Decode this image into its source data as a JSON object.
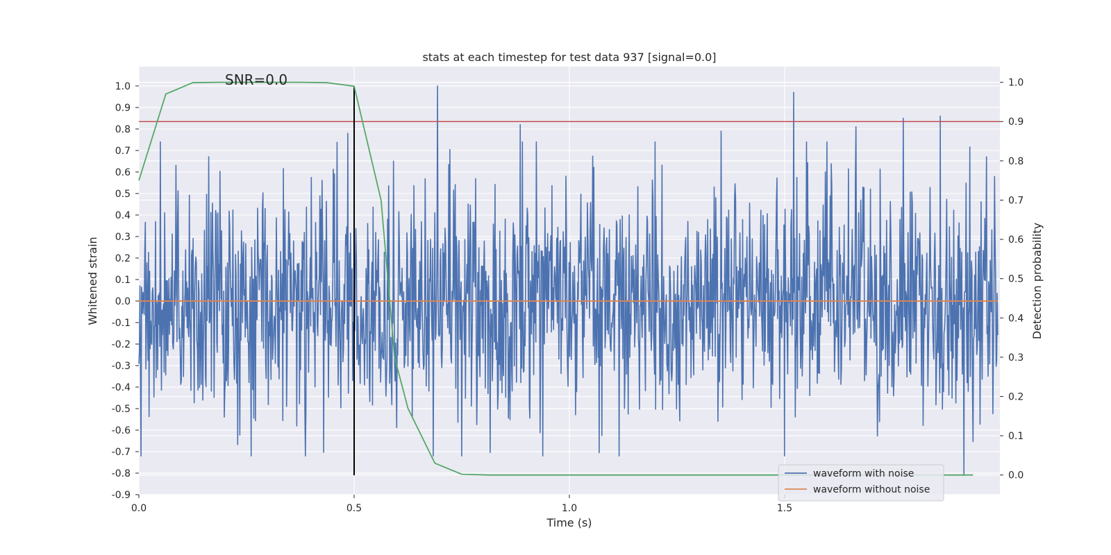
{
  "chart_data": {
    "type": "line",
    "title": "stats at each timestep for test data 937 [signal=0.0]",
    "xlabel": "Time (s)",
    "ylabel_left": "Whitened strain",
    "ylabel_right": "Detection probability",
    "xlim": [
      0.0,
      2.0
    ],
    "ylim_left": [
      -0.9,
      1.09
    ],
    "ylim_right": [
      -0.05,
      1.04
    ],
    "x_ticks": [
      "0.0",
      "0.5",
      "1.0",
      "1.5"
    ],
    "x_tick_values": [
      0.0,
      0.5,
      1.0,
      1.5
    ],
    "y_left_ticks": [
      "1.0",
      "0.9",
      "0.8",
      "0.7",
      "0.6",
      "0.5",
      "0.4",
      "0.3",
      "0.2",
      "0.1",
      "0.0",
      "-0.1",
      "-0.2",
      "-0.3",
      "-0.4",
      "-0.5",
      "-0.6",
      "-0.7",
      "-0.8",
      "-0.9"
    ],
    "y_left_tick_values": [
      1.0,
      0.9,
      0.8,
      0.7,
      0.6,
      0.5,
      0.4,
      0.3,
      0.2,
      0.1,
      0.0,
      -0.1,
      -0.2,
      -0.3,
      -0.4,
      -0.5,
      -0.6,
      -0.7,
      -0.8,
      -0.9
    ],
    "y_right_ticks": [
      "1.0",
      "0.9",
      "0.8",
      "0.7",
      "0.6",
      "0.5",
      "0.4",
      "0.3",
      "0.2",
      "0.1",
      "0.0"
    ],
    "y_right_tick_values": [
      1.0,
      0.9,
      0.8,
      0.7,
      0.6,
      0.5,
      0.4,
      0.3,
      0.2,
      0.1,
      0.0
    ],
    "annotation": "SNR=0.0",
    "annotation_x": 0.2,
    "annotation_y": 1.0,
    "threshold": {
      "axis": "right",
      "value": 0.9,
      "color": "#c44e52"
    },
    "vertical_marker": {
      "x": 0.5,
      "ymin": -0.81,
      "ymax": 1.0,
      "color": "#000000"
    },
    "series": [
      {
        "name": "waveform with noise",
        "axis": "left",
        "color": "#4c72b0",
        "x_start": 0.0,
        "x_end": 1.995,
        "n_points": 1600,
        "amplitude_std": 0.26,
        "min": -0.81,
        "max": 1.0,
        "notable_peaks": [
          [
            0.694,
            1.0
          ],
          [
            0.886,
            0.82
          ],
          [
            1.521,
            0.97
          ],
          [
            1.862,
            0.86
          ],
          [
            1.776,
            0.85
          ],
          [
            1.665,
            0.81
          ],
          [
            1.352,
            0.79
          ],
          [
            0.485,
            0.78
          ],
          [
            1.916,
            -0.81
          ]
        ]
      },
      {
        "name": "waveform without noise",
        "axis": "left",
        "color": "#dd8452",
        "x": [
          0.0,
          1.995
        ],
        "y": [
          0.0,
          0.0
        ]
      },
      {
        "name": "detection probability",
        "axis": "right",
        "color": "#55a868",
        "x": [
          0.0,
          0.0625,
          0.125,
          0.1875,
          0.25,
          0.3125,
          0.375,
          0.4375,
          0.5,
          0.5625,
          0.5938,
          0.625,
          0.6875,
          0.75,
          0.8125,
          0.875,
          0.9375,
          1.0,
          1.0625,
          1.125,
          1.1875,
          1.25,
          1.3125,
          1.375,
          1.4375,
          1.5,
          1.5625,
          1.625,
          1.6875,
          1.75,
          1.8125,
          1.875,
          1.9375
        ],
        "y": [
          0.75,
          0.97,
          0.999,
          1.0,
          1.0,
          1.0,
          1.0,
          0.999,
          0.99,
          0.7,
          0.3,
          0.17,
          0.03,
          0.002,
          0.0,
          0.0,
          0.0,
          0.0,
          0.0,
          0.0,
          0.0,
          0.0,
          0.0,
          0.0,
          0.0,
          0.0,
          0.0,
          0.0,
          0.0,
          0.0,
          0.0,
          0.0,
          0.0
        ]
      }
    ],
    "legend": {
      "placement": "bottom-right",
      "entries": [
        {
          "label": "waveform with noise",
          "color": "#4c72b0"
        },
        {
          "label": "waveform without noise",
          "color": "#dd8452"
        }
      ]
    },
    "style": {
      "background": "#eaeaf2",
      "grid": true,
      "grid_color": "#ffffff"
    }
  }
}
